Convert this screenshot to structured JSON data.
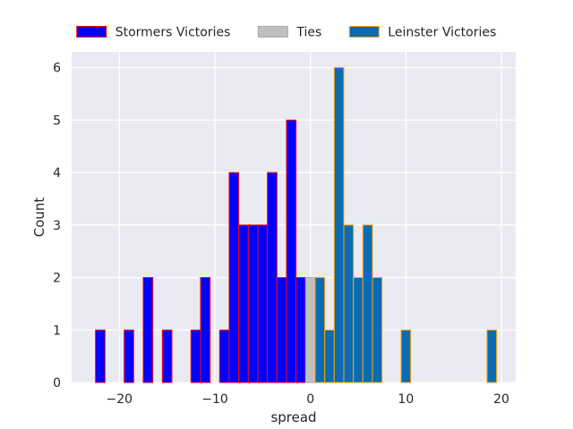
{
  "chart_data": {
    "type": "bar",
    "title": "",
    "xlabel": "spread",
    "ylabel": "Count",
    "xlim": [
      -25,
      21.5
    ],
    "ylim": [
      0,
      6.3
    ],
    "xticks": [
      -20,
      -10,
      0,
      10,
      20
    ],
    "yticks": [
      0,
      1,
      2,
      3,
      4,
      5,
      6
    ],
    "grid": true,
    "legend_position": "top-center",
    "bin_width": 1,
    "series": [
      {
        "name": "Stormers Victories",
        "fill_color": "#0000ff",
        "edge_color": "#ff0000",
        "bins": [
          {
            "x": -22,
            "count": 1
          },
          {
            "x": -19,
            "count": 1
          },
          {
            "x": -17,
            "count": 2
          },
          {
            "x": -15,
            "count": 1
          },
          {
            "x": -12,
            "count": 1
          },
          {
            "x": -11,
            "count": 2
          },
          {
            "x": -9,
            "count": 1
          },
          {
            "x": -8,
            "count": 4
          },
          {
            "x": -7,
            "count": 3
          },
          {
            "x": -6,
            "count": 3
          },
          {
            "x": -5,
            "count": 3
          },
          {
            "x": -4,
            "count": 4
          },
          {
            "x": -3,
            "count": 2
          },
          {
            "x": -2,
            "count": 5
          },
          {
            "x": -1,
            "count": 2
          }
        ]
      },
      {
        "name": "Ties",
        "fill_color": "#c0c0c0",
        "edge_color": "#a9a9a9",
        "bins": [
          {
            "x": 0,
            "count": 2
          }
        ]
      },
      {
        "name": "Leinster Victories",
        "fill_color": "#0a6bb5",
        "edge_color": "#ffa500",
        "bins": [
          {
            "x": 1,
            "count": 2
          },
          {
            "x": 2,
            "count": 1
          },
          {
            "x": 3,
            "count": 6
          },
          {
            "x": 4,
            "count": 3
          },
          {
            "x": 5,
            "count": 2
          },
          {
            "x": 6,
            "count": 3
          },
          {
            "x": 7,
            "count": 2
          },
          {
            "x": 10,
            "count": 1
          },
          {
            "x": 19,
            "count": 1
          }
        ]
      }
    ]
  },
  "colors": {
    "plot_background": "#eaeaf2",
    "grid": "#ffffff",
    "text": "#262626"
  }
}
